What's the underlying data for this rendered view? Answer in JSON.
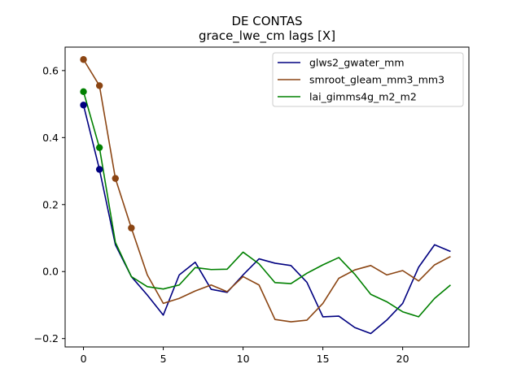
{
  "chart_data": {
    "type": "line",
    "title": "DE CONTAS",
    "subtitle": "grace_lwe_cm lags [X]",
    "xlabel": "",
    "ylabel": "",
    "xlim": [
      -1.15,
      24.15
    ],
    "ylim": [
      -0.225,
      0.67
    ],
    "xticks": [
      0,
      5,
      10,
      15,
      20
    ],
    "yticks": [
      -0.2,
      0.0,
      0.2,
      0.4,
      0.6
    ],
    "ytick_labels": [
      "−0.2",
      "0.0",
      "0.2",
      "0.4",
      "0.6"
    ],
    "grid": false,
    "legend_position": "top-right",
    "x": [
      0,
      1,
      2,
      3,
      4,
      5,
      6,
      7,
      8,
      9,
      10,
      11,
      12,
      13,
      14,
      15,
      16,
      17,
      18,
      19,
      20,
      21,
      22,
      23
    ],
    "series": [
      {
        "name": "glws2_gwater_mm",
        "color": "#000080",
        "values": [
          0.497,
          0.305,
          0.08,
          -0.015,
          -0.07,
          -0.13,
          -0.01,
          0.028,
          -0.053,
          -0.062,
          -0.01,
          0.038,
          0.025,
          0.018,
          -0.032,
          -0.135,
          -0.133,
          -0.167,
          -0.185,
          -0.145,
          -0.095,
          0.013,
          0.08,
          0.06
        ],
        "markers": [
          0,
          1
        ]
      },
      {
        "name": "smroot_gleam_mm3_mm3",
        "color": "#8b4513",
        "values": [
          0.633,
          0.555,
          0.278,
          0.13,
          -0.01,
          -0.095,
          -0.08,
          -0.058,
          -0.04,
          -0.06,
          -0.015,
          -0.04,
          -0.143,
          -0.15,
          -0.145,
          -0.095,
          -0.02,
          0.005,
          0.018,
          -0.01,
          0.003,
          -0.028,
          0.02,
          0.045
        ],
        "markers": [
          0,
          1,
          2,
          3
        ]
      },
      {
        "name": "lai_gimms4g_m2_m2",
        "color": "#008000",
        "values": [
          0.537,
          0.37,
          0.087,
          -0.015,
          -0.045,
          -0.052,
          -0.04,
          0.012,
          0.006,
          0.007,
          0.058,
          0.023,
          -0.033,
          -0.036,
          -0.005,
          0.02,
          0.042,
          -0.008,
          -0.068,
          -0.09,
          -0.12,
          -0.135,
          -0.08,
          -0.04
        ],
        "markers": [
          0,
          1
        ]
      }
    ]
  }
}
